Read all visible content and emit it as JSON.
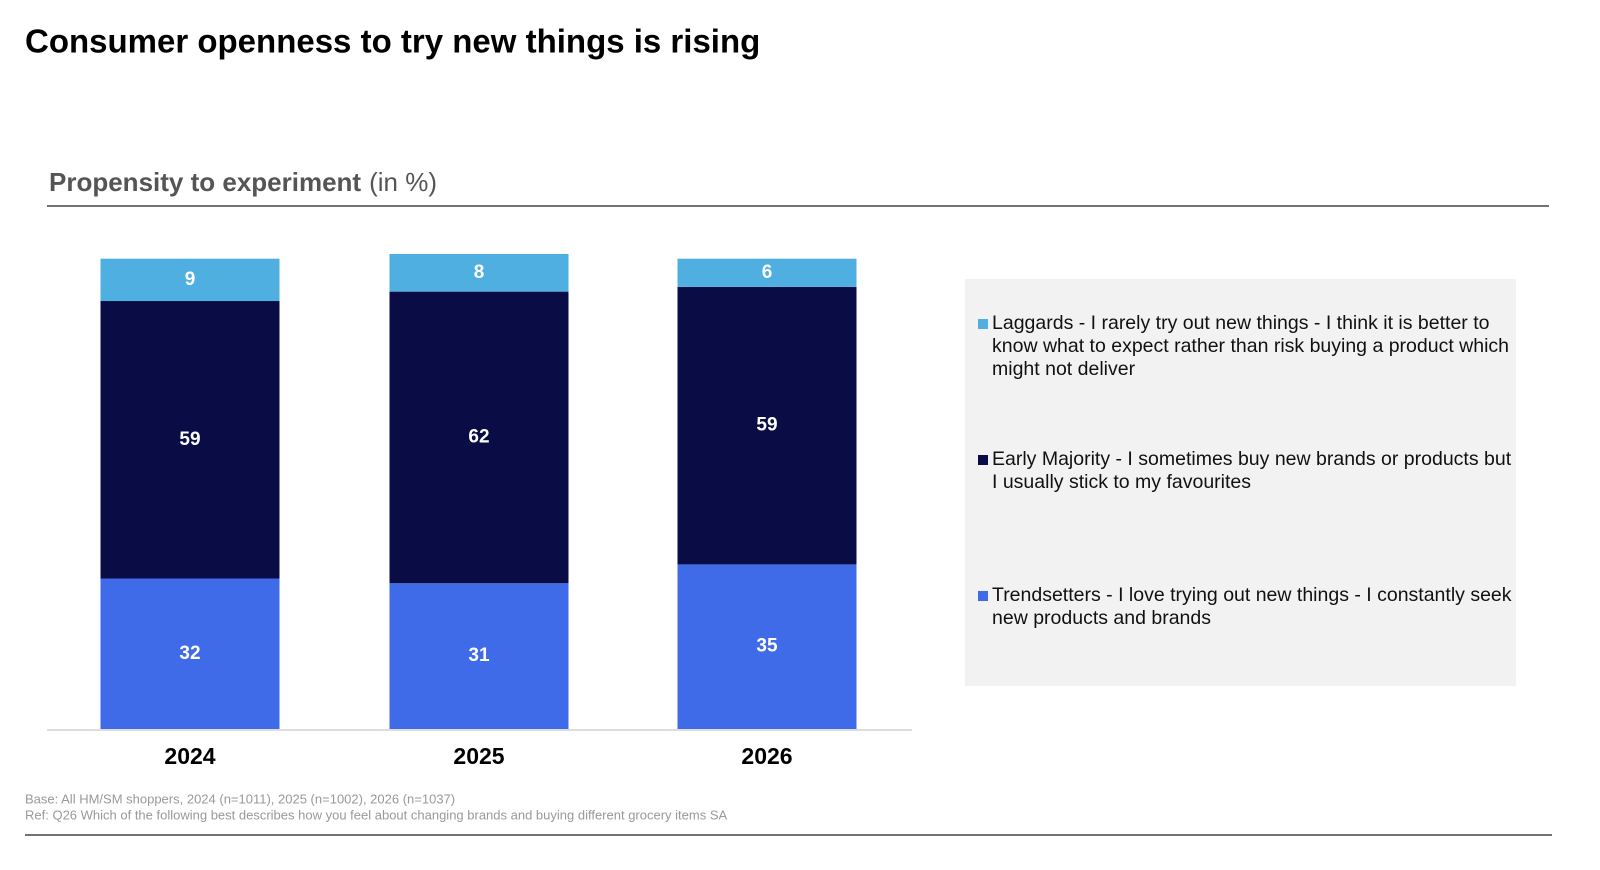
{
  "chart_data": {
    "type": "stacked-bar",
    "title": "Consumer openness to try new things is rising",
    "subtitle": "Propensity to experiment",
    "subtitle_unit": "(in %)",
    "categories": [
      "2024",
      "2025",
      "2026"
    ],
    "series": [
      {
        "name": "Trendsetters - I love trying out new things - I constantly seek new products and brands",
        "color": "#3f6ae8",
        "values": [
          32,
          31,
          35
        ]
      },
      {
        "name": "Early Majority - I sometimes buy new brands or products but I usually stick to my favourites",
        "color": "#0a0c45",
        "values": [
          59,
          62,
          59
        ]
      },
      {
        "name": "Laggards - I rarely try out new things - I think it is better to know what to expect rather than risk buying a product which might not deliver",
        "color": "#4fafe0",
        "values": [
          9,
          8,
          6
        ]
      }
    ],
    "footnotes": [
      "Base: All HM/SM shoppers, 2024 (n=1011), 2025 (n=1002), 2026 (n=1037)",
      "Ref: Q26 Which of the following best describes how you feel about changing brands and buying different grocery items SA"
    ]
  }
}
